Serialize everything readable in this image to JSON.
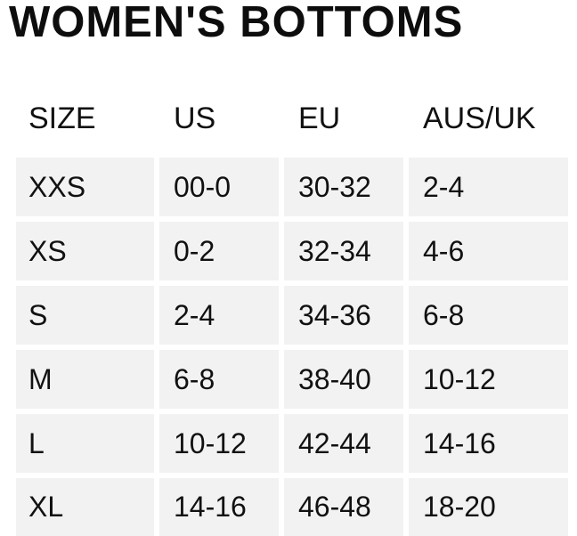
{
  "title": "WOMEN'S BOTTOMS",
  "columns": [
    "SIZE",
    "US",
    "EU",
    "AUS/UK"
  ],
  "rows": [
    [
      "XXS",
      "00-0",
      "30-32",
      "2-4"
    ],
    [
      "XS",
      "0-2",
      "32-34",
      "4-6"
    ],
    [
      "S",
      "2-4",
      "34-36",
      "6-8"
    ],
    [
      "M",
      "6-8",
      "38-40",
      "10-12"
    ],
    [
      "L",
      "10-12",
      "42-44",
      "14-16"
    ],
    [
      "XL",
      "14-16",
      "46-48",
      "18-20"
    ]
  ],
  "colors": {
    "text": "#111111",
    "cell_background": "#f2f2f2",
    "page_background": "#ffffff"
  }
}
